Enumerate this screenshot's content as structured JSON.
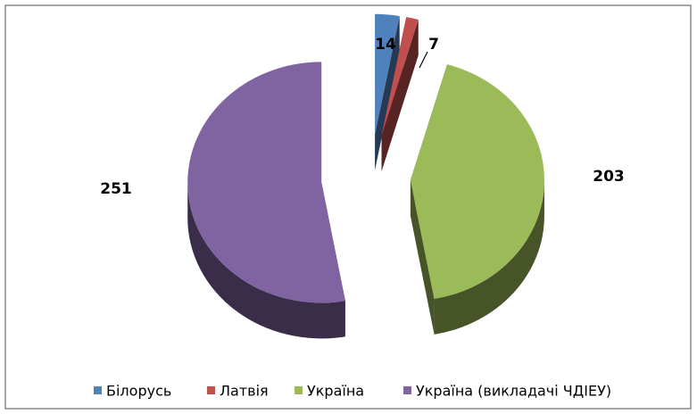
{
  "chart_data": {
    "type": "pie",
    "categories": [
      "Білорусь",
      "Латвія",
      "Україна",
      "Україна (викладачі ЧДІЕУ)"
    ],
    "values": [
      14,
      7,
      203,
      251
    ],
    "colors": [
      "#4f81bd",
      "#c0504d",
      "#9bbb59",
      "#8064a2"
    ],
    "legend": "bottom"
  }
}
